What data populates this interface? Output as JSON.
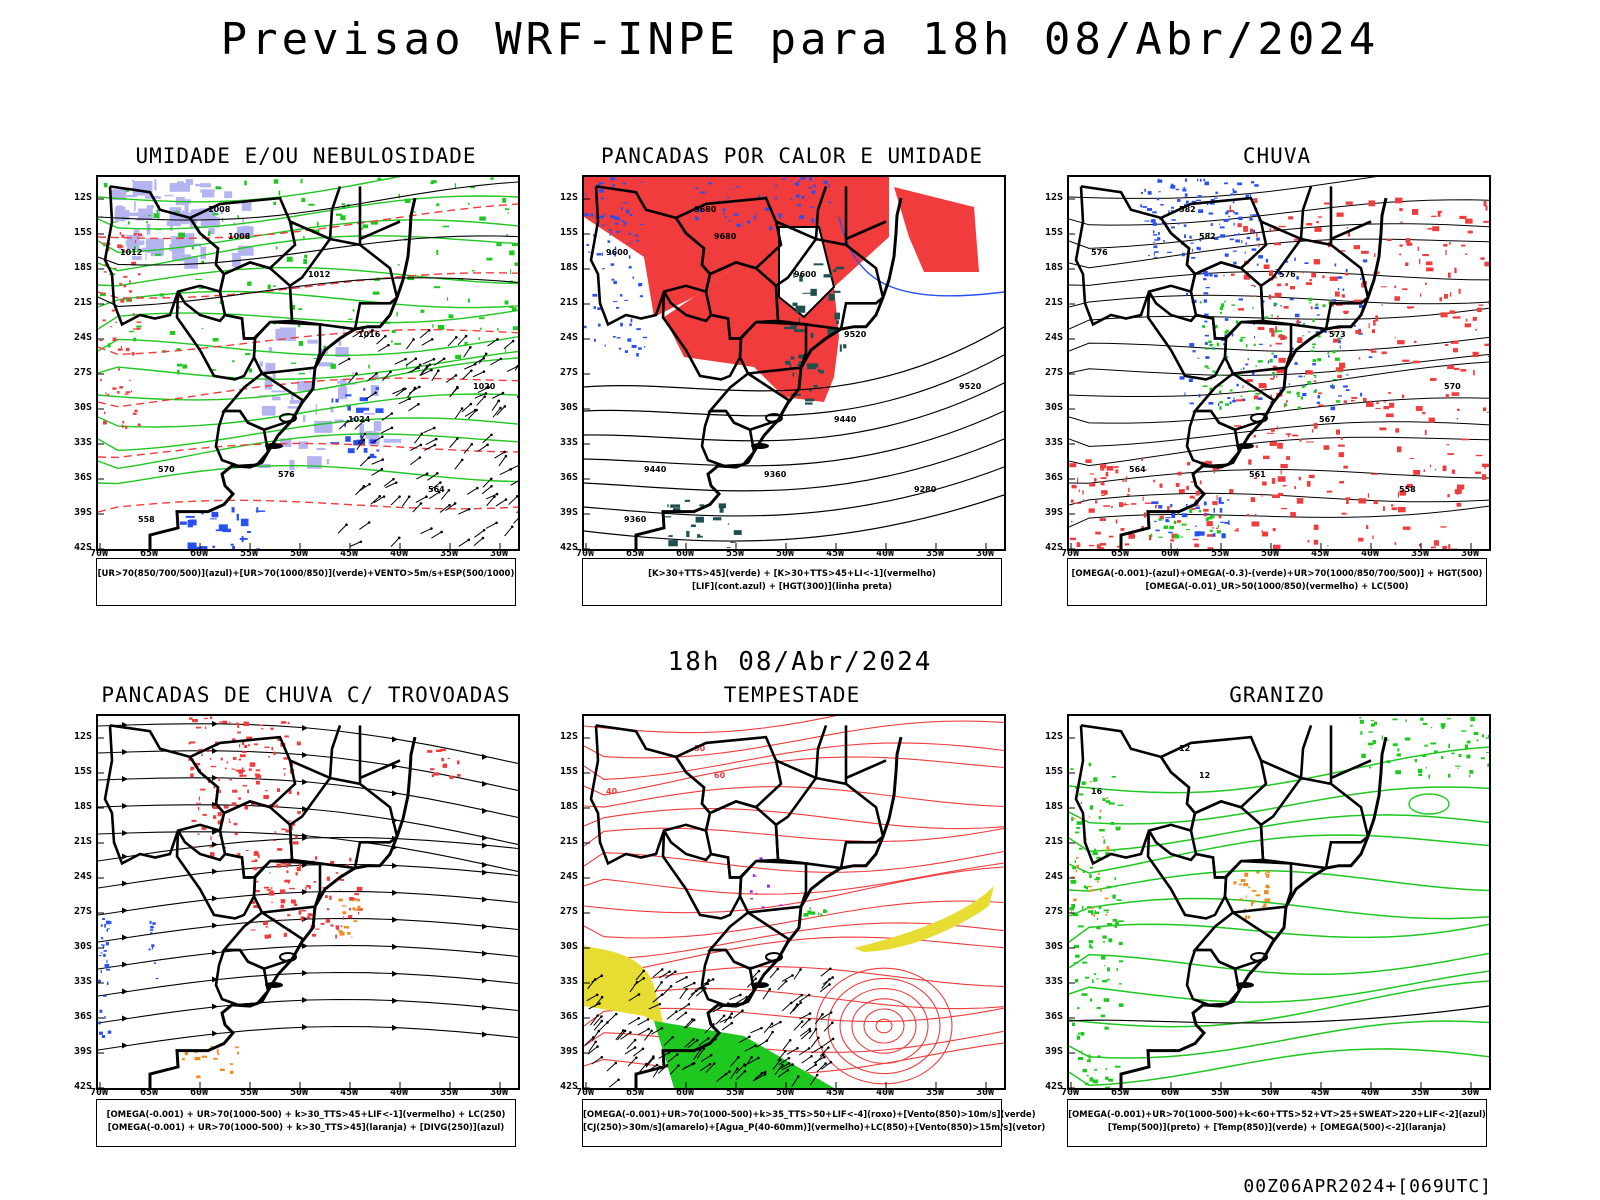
{
  "title": "Previsao WRF-INPE  para 18h 08/Abr/2024",
  "subtitle": "18h 08/Abr/2024",
  "footer": "00Z06APR2024+[069UTC]",
  "lat_labels": [
    "12S",
    "15S",
    "18S",
    "21S",
    "24S",
    "27S",
    "30S",
    "33S",
    "36S",
    "39S",
    "42S"
  ],
  "lon_labels": [
    "70W",
    "65W",
    "60W",
    "55W",
    "50W",
    "45W",
    "40W",
    "35W",
    "30W"
  ],
  "colors": {
    "red": "#f03c3c",
    "green": "#1ec81e",
    "blue": "#2850f0",
    "lavender": "#b4b4f0",
    "yellow": "#e6dc32",
    "orange": "#f08c1e",
    "teal": "#1e5050"
  },
  "panels": [
    {
      "title": "UMIDADE E/OU NEBULOSIDADE",
      "legend": [
        "[UR>70(850/700/500)](azul)+[UR>70(1000/850)](verde)+VENTO>5m/s+ESP(500/1000)"
      ],
      "contour_labels": [
        "1008",
        "1008",
        "1012",
        "1012",
        "1016",
        "1020",
        "1024",
        "570",
        "576",
        "564",
        "558"
      ]
    },
    {
      "title": "PANCADAS POR CALOR E UMIDADE",
      "legend": [
        "[K>30+TTS>45](verde) + [K>30+TTS>45+LI<-1](vermelho)",
        "[LIF](cont.azul) + [HGT(300)](linha preta)"
      ],
      "contour_labels": [
        "9680",
        "9680",
        "9600",
        "9600",
        "9520",
        "9520",
        "9440",
        "9440",
        "9360",
        "9280",
        "9360"
      ]
    },
    {
      "title": "CHUVA",
      "legend": [
        "[OMEGA(-0.001)-(azul)+OMEGA(-0.3)-(verde)+UR>70(1000/850/700/500)] + HGT(500)",
        "[OMEGA(-0.01)_UR>50(1000/850)(vermelho) + LC(500)"
      ],
      "contour_labels": [
        "582",
        "582",
        "576",
        "576",
        "573",
        "570",
        "567",
        "564",
        "561",
        "558"
      ]
    },
    {
      "title": "PANCADAS DE CHUVA C/ TROVOADAS",
      "legend": [
        "[OMEGA(-0.001) + UR>70(1000-500) + k>30_TTS>45+LIF<-1](vermelho) + LC(250)",
        "[OMEGA(-0.001) + UR>70(1000-500) + k>30_TTS>45](laranja) + [DIVG(250)](azul)"
      ],
      "contour_labels": []
    },
    {
      "title": "TEMPESTADE",
      "legend": [
        "[OMEGA(-0.001)+UR>70(1000-500)+k>35_TTS>50+LIF<-4](roxo)+[Vento(850)>10m/s](verde)",
        "[CJ(250)>30m/s](amarelo)+[Agua_P(40-60mm)](vermelho)+LC(850)+[Vento(850)>15m/s](vetor)"
      ],
      "contour_labels": [
        "50",
        "60",
        "40"
      ]
    },
    {
      "title": "GRANIZO",
      "legend": [
        "[OMEGA(-0.001)+UR>70(1000-500)+k<60+TTS>52+VT>25+SWEAT>220+LIF<-2](azul)",
        "[Temp(500)](preto) + [Temp(850)](verde) + [OMEGA(500)<-2](laranja)"
      ],
      "contour_labels": [
        "12",
        "12",
        "16"
      ]
    }
  ]
}
